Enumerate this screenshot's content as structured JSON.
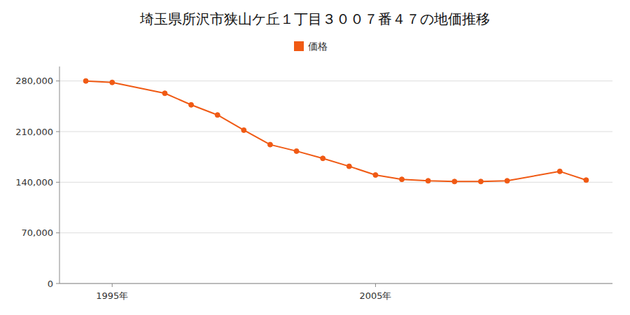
{
  "chart_data": {
    "type": "line",
    "title": "埼玉県所沢市狭山ケ丘１丁目３００７番４７の地価推移",
    "x": [
      1994,
      1995,
      1997,
      1998,
      1999,
      2000,
      2001,
      2002,
      2003,
      2004,
      2005,
      2006,
      2007,
      2008,
      2009,
      2010,
      2012,
      2013
    ],
    "series": [
      {
        "name": "価格",
        "color": "#f05a14",
        "marker": "circle",
        "values": [
          280000,
          278000,
          263000,
          247000,
          233000,
          212000,
          192000,
          183000,
          173000,
          162000,
          150000,
          144000,
          142000,
          141000,
          141000,
          142000,
          155000,
          143000
        ]
      }
    ],
    "xlim": [
      1993,
      2014
    ],
    "xticks": [
      {
        "value": 1995,
        "label": "1995年"
      },
      {
        "value": 2005,
        "label": "2005年"
      }
    ],
    "ylim": [
      0,
      300000
    ],
    "yticks": [
      0,
      {
        "value": 70000,
        "label": "70,000"
      },
      {
        "value": 140000,
        "label": "140,000"
      },
      {
        "value": 210000,
        "label": "210,000"
      },
      {
        "value": 280000,
        "label": "280,000"
      }
    ],
    "grid": true,
    "legend": "top"
  }
}
